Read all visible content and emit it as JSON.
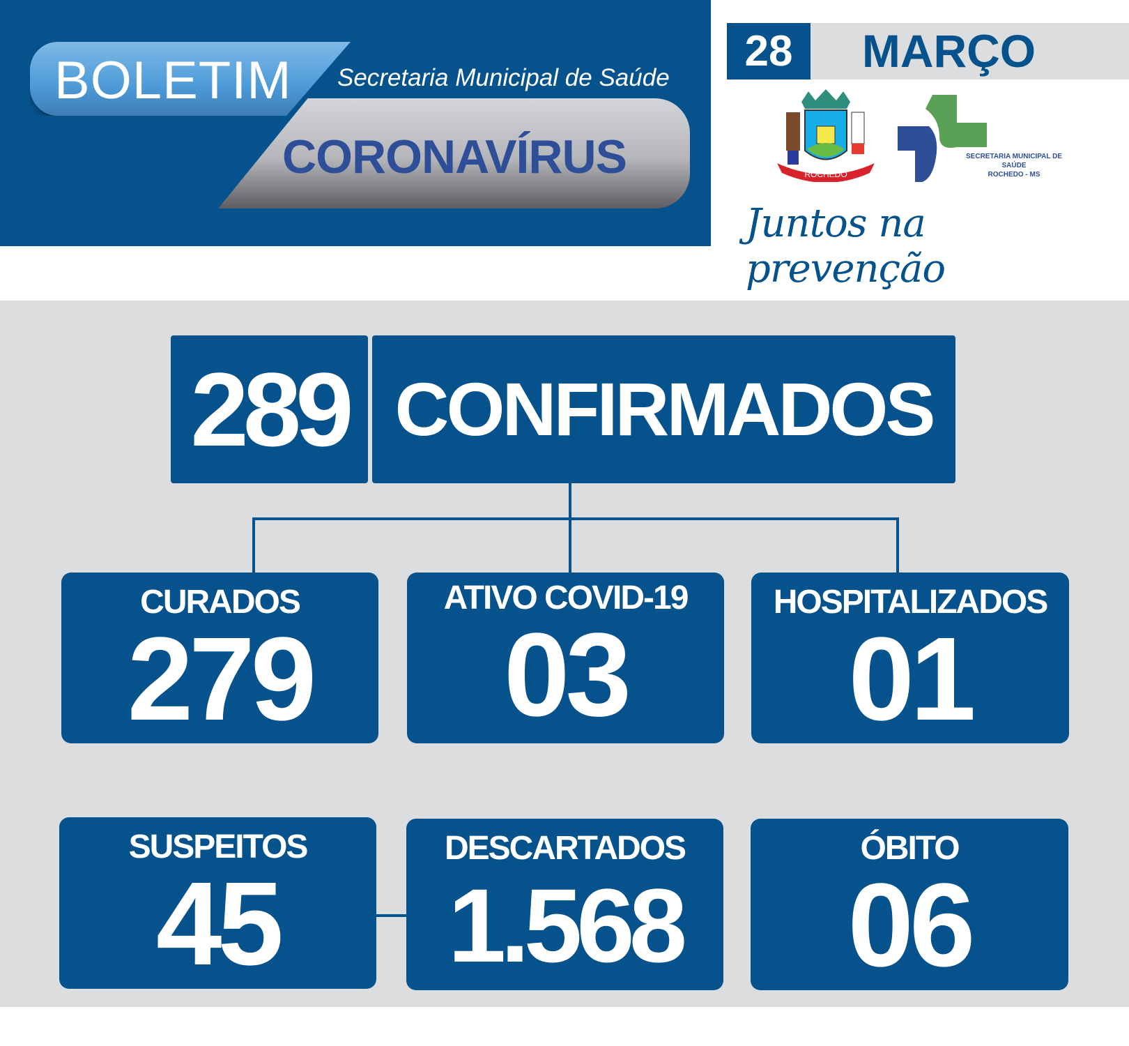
{
  "header": {
    "boletim": "BOLETIM",
    "secretaria": "Secretaria Municipal de Saúde",
    "coronavirus": "CORONAVÍRUS",
    "day": "28",
    "month": "MARÇO",
    "crest_text": "ROCHEDO",
    "saude_logo_line1": "SECRETARIA MUNICIPAL DE SAÚDE",
    "saude_logo_line2": "ROCHEDO - MS",
    "slogan": "Juntos na prevenção"
  },
  "colors": {
    "brand_blue": "#06528c",
    "background_gray": "#dcdddf",
    "logo_green": "#5ba155",
    "logo_blue": "#2e4f98"
  },
  "confirmed": {
    "value": "289",
    "label": "CONFIRMADOS"
  },
  "stats": [
    {
      "label": "CURADOS",
      "value": "279"
    },
    {
      "label": "ATIVO COVID-19",
      "value": "03"
    },
    {
      "label": "HOSPITALIZADOS",
      "value": "01"
    },
    {
      "label": "SUSPEITOS",
      "value": "45"
    },
    {
      "label": "DESCARTADOS",
      "value": "1.568"
    },
    {
      "label": "ÓBITO",
      "value": "06"
    }
  ]
}
